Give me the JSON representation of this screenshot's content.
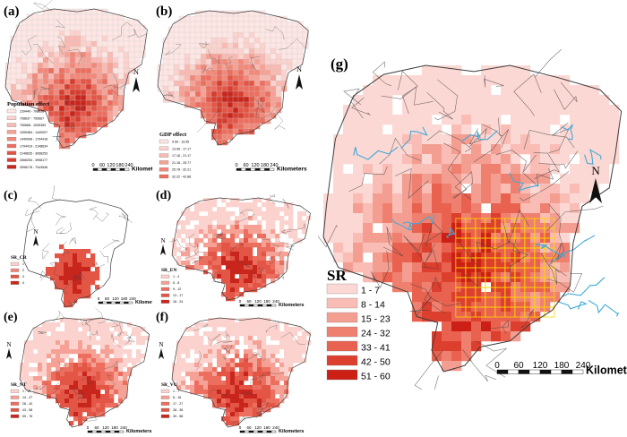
{
  "panels": [
    {
      "id": "a",
      "label": "(a)",
      "legend_title": "Population effect",
      "legend_items": [
        "239440 - 708636",
        "708637 - 750667",
        "750668 - 1095383",
        "1095384 - 1440007",
        "1440008 - 1794418",
        "1794419 - 2148634",
        "2148635 - 3068253",
        "3068254 - 3998177",
        "3998178 - 7043546"
      ],
      "colors": [
        "#fde6e4",
        "#fbd2cd",
        "#f9bab2",
        "#f6a195",
        "#f1887a",
        "#ec6e5f",
        "#e35646",
        "#d63d2f",
        "#c8261d"
      ],
      "scalebar": {
        "ticks": [
          "0",
          "60",
          "120",
          "180",
          "240"
        ],
        "unit": "Kilometers"
      },
      "north": "N"
    },
    {
      "id": "b",
      "label": "(b)",
      "legend_title": "GDP effect",
      "legend_items": [
        "9.59 - 13.95",
        "13.96 - 17.17",
        "17.18 - 21.17",
        "21.18 - 25.77",
        "25.78 - 32.21",
        "32.22 - 42.88",
        "42.89 - 84.41",
        "84.42 - 229.83",
        "229.84 - 1116.19"
      ],
      "colors": [
        "#fde6e4",
        "#fbd2cd",
        "#f9bab2",
        "#f6a195",
        "#f1887a",
        "#ec6e5f",
        "#e35646",
        "#d63d2f",
        "#c8261d"
      ],
      "scalebar": {
        "ticks": [
          "0",
          "60",
          "120",
          "180",
          "240"
        ],
        "unit": "Kilometers"
      },
      "north": "N"
    },
    {
      "id": "c",
      "label": "(c)",
      "legend_title": "SR_CR",
      "legend_items": [
        "1",
        "2",
        "3",
        "4"
      ],
      "colors": [
        "#fbd2cd",
        "#f1887a",
        "#e35646",
        "#c8261d"
      ],
      "scalebar": {
        "ticks": [
          "0",
          "60",
          "120",
          "180",
          "240"
        ],
        "unit": "Kilometers"
      },
      "north": "N"
    },
    {
      "id": "d",
      "label": "(d)",
      "legend_title": "SR_EN",
      "legend_items": [
        "1 - 4",
        "5 - 8",
        "9 - 12",
        "13 - 17",
        "18 - 24"
      ],
      "colors": [
        "#fbd2cd",
        "#f6a195",
        "#ec6e5f",
        "#e35646",
        "#c8261d"
      ],
      "scalebar": {
        "ticks": [
          "0",
          "60",
          "120",
          "180",
          "240"
        ],
        "unit": "Kilometers"
      },
      "north": "N"
    },
    {
      "id": "e",
      "label": "(e)",
      "legend_title": "SR_NT",
      "legend_items": [
        "1 - 13",
        "14 - 27",
        "28 - 42",
        "43 - 58",
        "59 - 76"
      ],
      "colors": [
        "#fbd2cd",
        "#f6a195",
        "#ec6e5f",
        "#e35646",
        "#c8261d"
      ],
      "scalebar": {
        "ticks": [
          "0",
          "60",
          "120",
          "180",
          "240"
        ],
        "unit": "Kilometers"
      },
      "north": "N"
    },
    {
      "id": "f",
      "label": "(f)",
      "legend_title": "SR_VU",
      "legend_items": [
        "1 - 7",
        "8 - 16",
        "17 - 27",
        "28 - 38",
        "39 - 58"
      ],
      "colors": [
        "#fbd2cd",
        "#f6a195",
        "#ec6e5f",
        "#e35646",
        "#c8261d"
      ],
      "scalebar": {
        "ticks": [
          "0",
          "60",
          "120",
          "180",
          "240"
        ],
        "unit": "Kilometers"
      },
      "north": "N"
    },
    {
      "id": "g",
      "label": "(g)",
      "legend_title": "SR",
      "legend_items": [
        "1 - 7",
        "8 - 14",
        "15 - 23",
        "24 - 32",
        "33 - 41",
        "42 - 50",
        "51 - 60"
      ],
      "colors": [
        "#fcd8d4",
        "#f9bdb5",
        "#f49e92",
        "#ef806f",
        "#e8624f",
        "#dd3f2e",
        "#cc1f16"
      ],
      "scalebar": {
        "ticks": [
          "0",
          "60",
          "120",
          "180",
          "240"
        ],
        "unit": "Kilometers"
      },
      "north": "N"
    }
  ],
  "style": {
    "border": "#3d3d3d",
    "river": "#41a9d6",
    "hotspot_grid": "#ffd700"
  }
}
